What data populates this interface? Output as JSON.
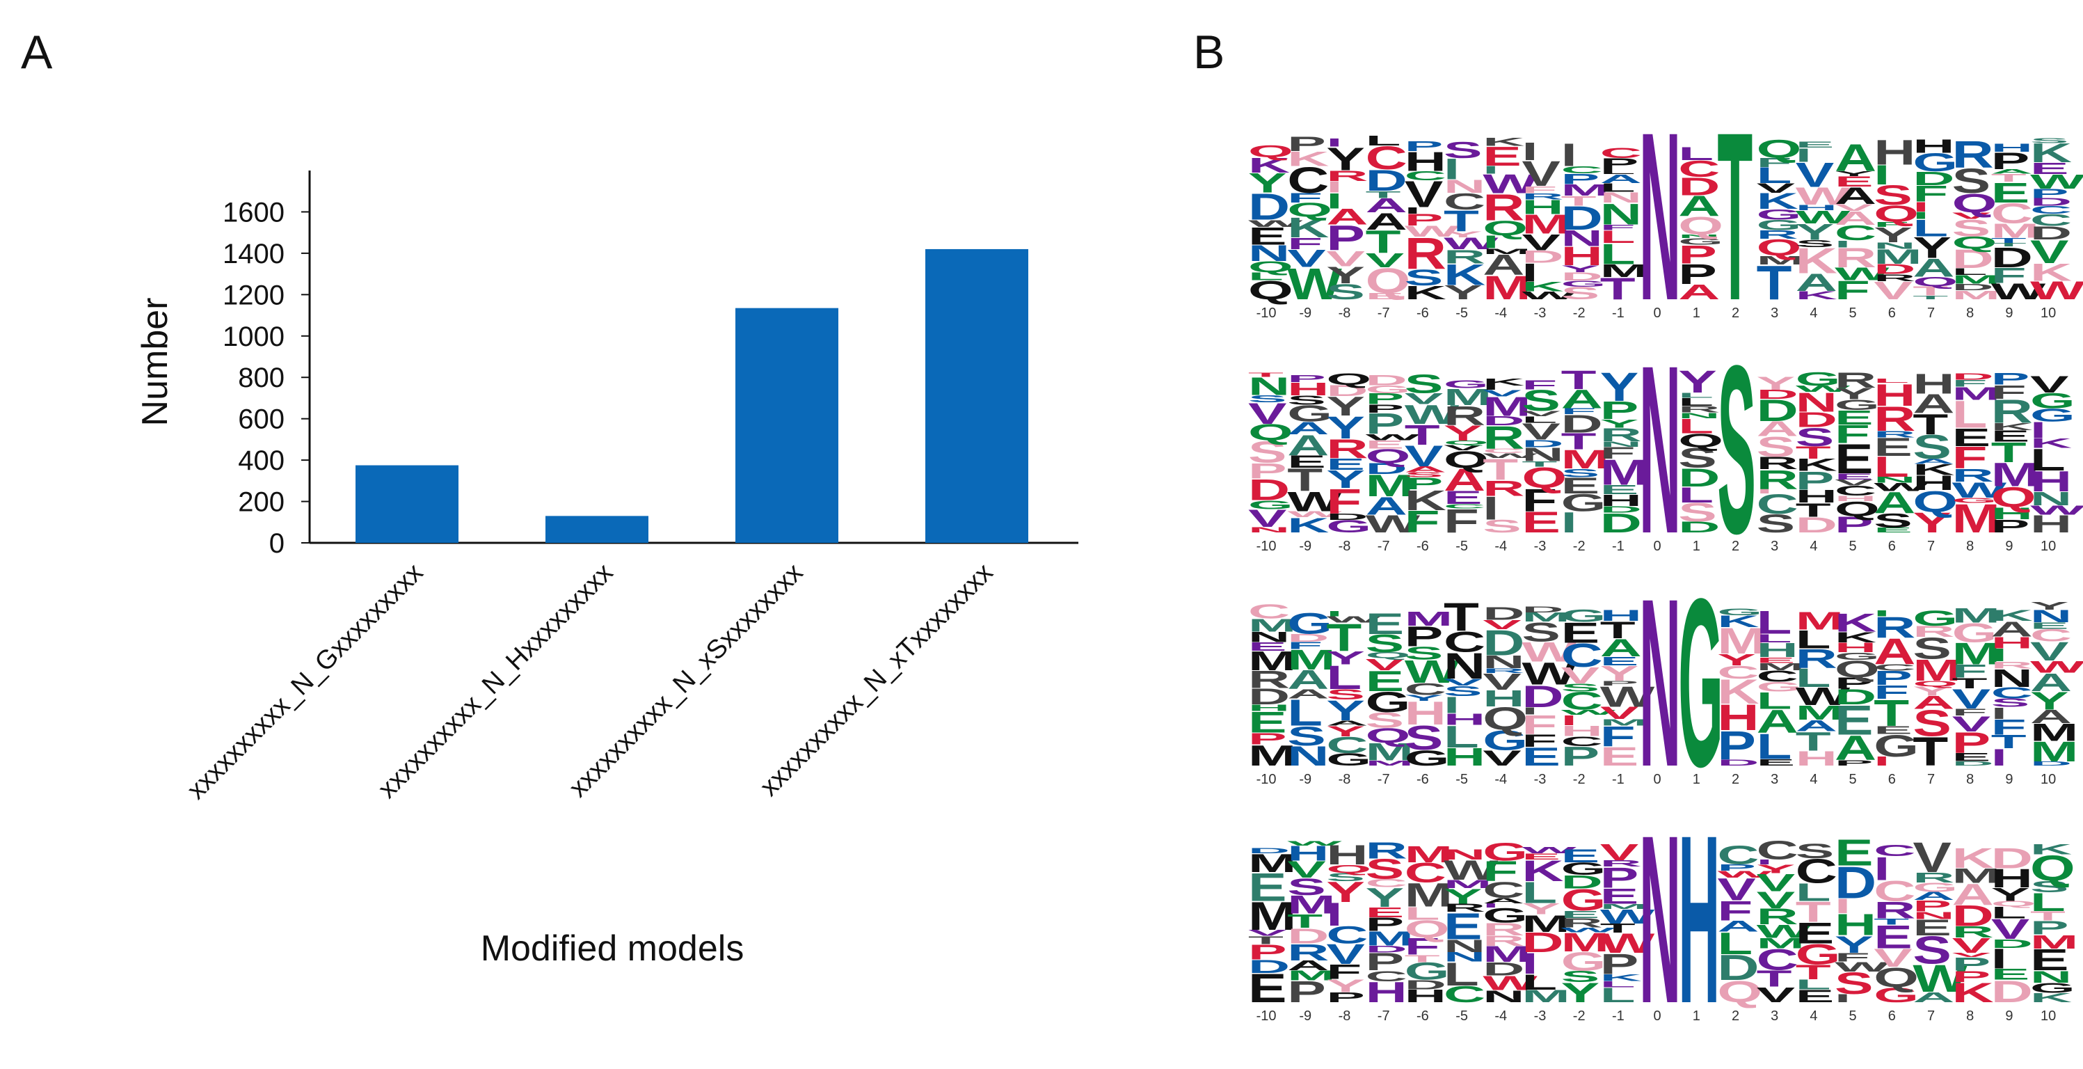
{
  "panels": {
    "a": "A",
    "b": "B"
  },
  "colors": {
    "bar": "#0a69b8",
    "axis": "#111111"
  },
  "chart_data": {
    "type": "bar",
    "title": "",
    "xlabel": "Modified models",
    "ylabel": "Number",
    "ylim": [
      0,
      1800
    ],
    "yticks": [
      0,
      200,
      400,
      600,
      800,
      1000,
      1200,
      1400,
      1600
    ],
    "categories": [
      "xxxxxxxxxx_N_Gxxxxxxxxx",
      "xxxxxxxxxx_N_Hxxxxxxxxx",
      "xxxxxxxxxx_N_xSxxxxxxxx",
      "xxxxxxxxxx_N_xTxxxxxxxx"
    ],
    "values": [
      375,
      130,
      1135,
      1420
    ]
  },
  "logos": {
    "positions": [
      "-10",
      "-9",
      "-8",
      "-7",
      "-6",
      "-5",
      "-4",
      "-3",
      "-2",
      "-1",
      "0",
      "1",
      "2",
      "3",
      "4",
      "5",
      "6",
      "7",
      "8",
      "9",
      "10"
    ],
    "motifs": [
      {
        "tall": [
          {
            "pos": 10,
            "letter": "N",
            "color": "#6a1b9a"
          },
          {
            "pos": 12,
            "letter": "T",
            "color": "#0a8a3c"
          }
        ]
      },
      {
        "tall": [
          {
            "pos": 10,
            "letter": "N",
            "color": "#6a1b9a"
          },
          {
            "pos": 12,
            "letter": "S",
            "color": "#0a8a3c"
          }
        ]
      },
      {
        "tall": [
          {
            "pos": 10,
            "letter": "N",
            "color": "#6a1b9a"
          },
          {
            "pos": 11,
            "letter": "G",
            "color": "#0a8a3c"
          }
        ]
      },
      {
        "tall": [
          {
            "pos": 10,
            "letter": "N",
            "color": "#6a1b9a"
          },
          {
            "pos": 11,
            "letter": "H",
            "color": "#0a5aa8"
          }
        ]
      }
    ]
  }
}
